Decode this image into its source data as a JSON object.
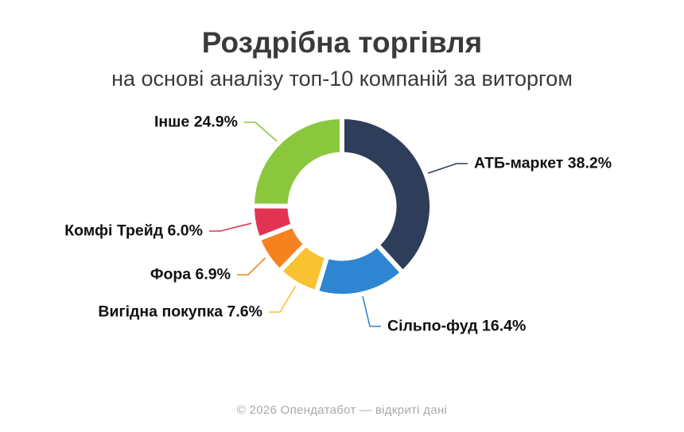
{
  "footer": "© 2026 Опендатабот — відкриті дані",
  "chart_data": {
    "type": "pie",
    "subtype": "donut",
    "title": "Роздрібна торгівля",
    "subtitle": "на основі аналізу топ-10 компаній за виторгом",
    "direction": "clockwise",
    "start_angle_deg": 0,
    "hole_ratio": 0.62,
    "legend_position": "outside-labels-with-leader-lines",
    "units": "%",
    "segments": [
      {
        "name": "АТБ-маркет",
        "value": 38.2,
        "label": "АТБ-маркет 38.2%",
        "color": "#2d3d5a"
      },
      {
        "name": "Сільпо-фуд",
        "value": 16.4,
        "label": "Сільпо-фуд 16.4%",
        "color": "#2e86d2"
      },
      {
        "name": "Вигідна покупка",
        "value": 7.6,
        "label": "Вигідна покупка 7.6%",
        "color": "#f9c230"
      },
      {
        "name": "Фора",
        "value": 6.9,
        "label": "Фора 6.9%",
        "color": "#f6821f"
      },
      {
        "name": "Комфі Трейд",
        "value": 6.0,
        "label": "Комфі Трейд 6.0%",
        "color": "#e23452"
      },
      {
        "name": "Інше",
        "value": 24.9,
        "label": "Інше 24.9%",
        "color": "#8bc73c"
      }
    ]
  }
}
